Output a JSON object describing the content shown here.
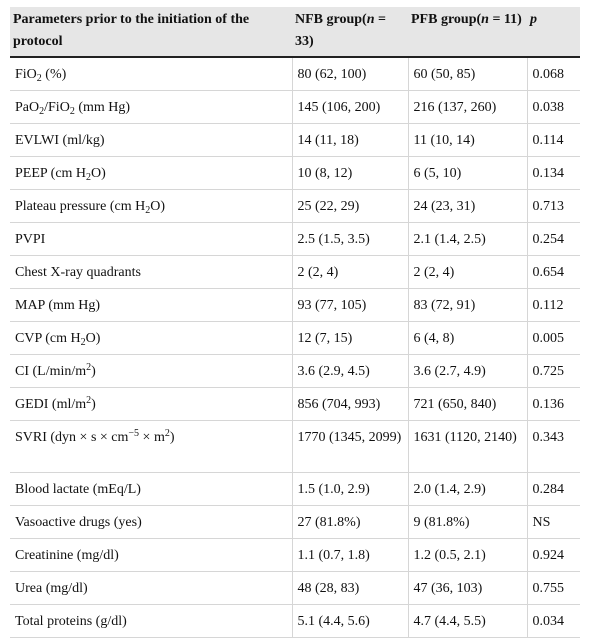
{
  "table": {
    "headers": {
      "param": "Parameters prior to the initiation of the protocol",
      "nfb_prefix": "NFB group(",
      "nfb_n": "n",
      "nfb_suffix": " = 33)",
      "pfb_prefix": "PFB group(",
      "pfb_n": "n",
      "pfb_suffix": " = 11)",
      "p": "p"
    },
    "rows": [
      {
        "p1": "FiO",
        "sub1": "2",
        "p2": " (%)",
        "nfb": "80 (62, 100)",
        "pfb": "60 (50, 85)",
        "p": "0.068"
      },
      {
        "p1": "PaO",
        "sub1": "2",
        "p2": "/FiO",
        "sub2": "2",
        "p3": " (mm Hg)",
        "nfb": "145 (106, 200)",
        "pfb": "216 (137, 260)",
        "p": "0.038"
      },
      {
        "p1": "EVLWI (ml/kg)",
        "nfb": "14 (11, 18)",
        "pfb": "11 (10, 14)",
        "p": "0.114"
      },
      {
        "p1": "PEEP (cm H",
        "sub1": "2",
        "p2": "O)",
        "nfb": "10 (8, 12)",
        "pfb": "6 (5, 10)",
        "p": "0.134"
      },
      {
        "p1": "Plateau pressure (cm H",
        "sub1": "2",
        "p2": "O)",
        "nfb": "25 (22, 29)",
        "pfb": "24 (23, 31)",
        "p": "0.713"
      },
      {
        "p1": "PVPI",
        "nfb": "2.5 (1.5, 3.5)",
        "pfb": "2.1 (1.4, 2.5)",
        "p": "0.254"
      },
      {
        "p1": "Chest X-ray quadrants",
        "nfb": "2 (2, 4)",
        "pfb": "2 (2, 4)",
        "p": "0.654"
      },
      {
        "p1": "MAP (mm Hg)",
        "nfb": "93 (77, 105)",
        "pfb": "83 (72, 91)",
        "p": "0.112"
      },
      {
        "p1": "CVP (cm H",
        "sub1": "2",
        "p2": "O)",
        "nfb": "12 (7, 15)",
        "pfb": "6 (4, 8)",
        "p": "0.005"
      },
      {
        "p1": "CI (L/min/m",
        "sup1": "2",
        "p2": ")",
        "nfb": "3.6 (2.9, 4.5)",
        "pfb": "3.6 (2.7, 4.9)",
        "p": "0.725"
      },
      {
        "p1": "GEDI (ml/m",
        "sup1": "2",
        "p2": ")",
        "nfb": "856 (704, 993)",
        "pfb": "721 (650, 840)",
        "p": "0.136"
      },
      {
        "p1": "SVRI (dyn × s × cm",
        "sup1": "−5",
        "p2": " × m",
        "sup2": "2",
        "p3": ")",
        "nfb": "1770 (1345, 2099)",
        "pfb": "1631 (1120, 2140)",
        "p": "0.343",
        "tall": true
      },
      {
        "p1": "Blood lactate (mEq/L)",
        "nfb": "1.5 (1.0, 2.9)",
        "pfb": "2.0 (1.4, 2.9)",
        "p": "0.284"
      },
      {
        "p1": "Vasoactive drugs (yes)",
        "nfb": "27 (81.8%)",
        "pfb": "9 (81.8%)",
        "p": "NS"
      },
      {
        "p1": "Creatinine (mg/dl)",
        "nfb": "1.1 (0.7, 1.8)",
        "pfb": "1.2 (0.5, 2.1)",
        "p": "0.924"
      },
      {
        "p1": "Urea (mg/dl)",
        "nfb": "48 (28, 83)",
        "pfb": "47 (36, 103)",
        "p": "0.755"
      },
      {
        "p1": "Total proteins (g/dl)",
        "nfb": "5.1 (4.4, 5.6)",
        "pfb": "4.7 (4.4, 5.5)",
        "p": "0.034"
      }
    ]
  }
}
